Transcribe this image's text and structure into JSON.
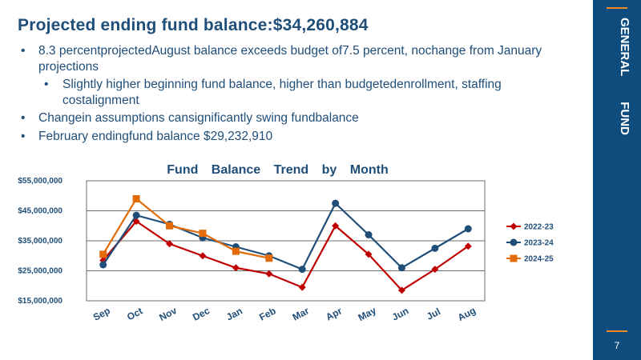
{
  "title": "Projected ending fund balance:$34,260,884",
  "bullets": [
    {
      "level": 1,
      "text": "8.3 percentprojectedAugust balance exceeds budget of7.5 percent, nochange from January projections"
    },
    {
      "level": 2,
      "text": "Slightly higher beginning fund balance, higher than budgetedenrollment, staffing costalignment"
    },
    {
      "level": 1,
      "text": "Changein assumptions cansignificantly swing fundbalance"
    },
    {
      "level": 1,
      "text": "February endingfund balance $29,232,910"
    }
  ],
  "sidebar": {
    "label": "GENERAL FUND",
    "page_number": "7"
  },
  "colors": {
    "sidebar": "#0e4c7e",
    "accent": "#f08a24",
    "title": "#1f4e79"
  },
  "chart_data": {
    "type": "line",
    "title": "Fund Balance Trend by Month",
    "xlabel": "",
    "ylabel": "",
    "categories": [
      "Sep",
      "Oct",
      "Nov",
      "Dec",
      "Jan",
      "Feb",
      "Mar",
      "Apr",
      "May",
      "Jun",
      "Jul",
      "Aug"
    ],
    "ylim": [
      15000000,
      55000000
    ],
    "yticks": [
      15000000,
      25000000,
      35000000,
      45000000,
      55000000
    ],
    "ytick_labels": [
      "$15,000,000",
      "$25,000,000",
      "$35,000,000",
      "$45,000,000",
      "$55,000,000"
    ],
    "grid": true,
    "legend": "right",
    "series": [
      {
        "name": "2022-23",
        "color": "#c00000",
        "marker": "diamond",
        "values": [
          28500000,
          41500000,
          34000000,
          30000000,
          26000000,
          24000000,
          19500000,
          40000000,
          30500000,
          18500000,
          25500000,
          33200000
        ]
      },
      {
        "name": "2023-24",
        "color": "#1f4e79",
        "marker": "circle",
        "values": [
          27000000,
          43500000,
          40500000,
          36000000,
          33000000,
          30000000,
          25500000,
          47500000,
          37000000,
          26000000,
          32500000,
          39000000
        ]
      },
      {
        "name": "2024-25",
        "color": "#e36c09",
        "marker": "square",
        "values": [
          30500000,
          49000000,
          40000000,
          37500000,
          31500000,
          29200000,
          null,
          null,
          null,
          null,
          null,
          null
        ]
      }
    ]
  }
}
